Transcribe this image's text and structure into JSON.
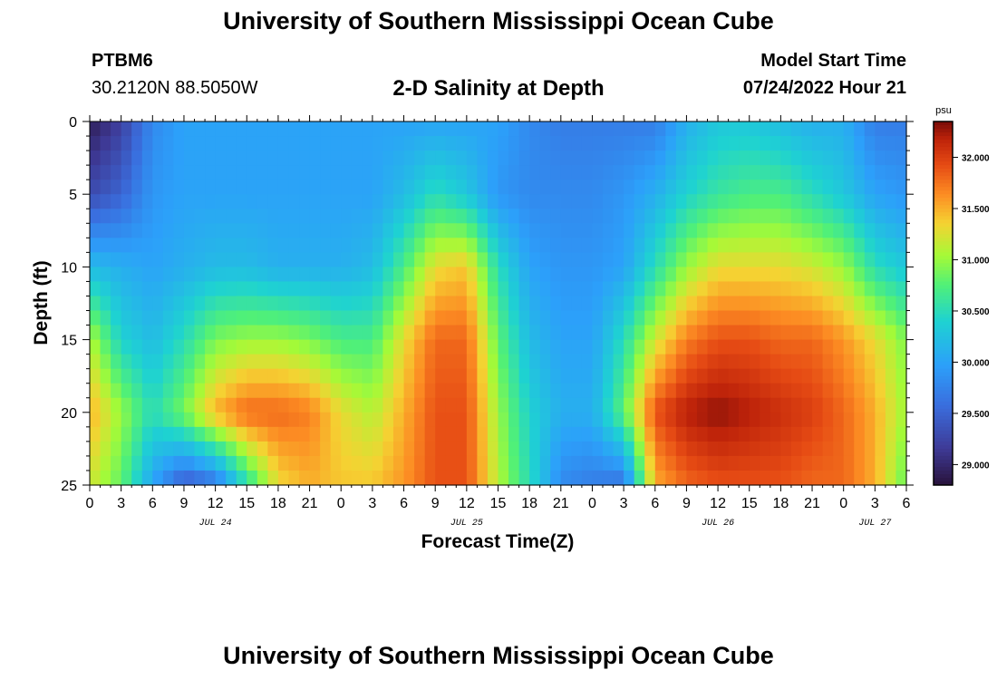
{
  "header": {
    "title": "University of Southern Mississippi Ocean Cube",
    "station_id": "PTBM6",
    "station_coords": "30.2120N  88.5050W",
    "plot_title": "2-D Salinity at Depth",
    "model_start_label": "Model Start Time",
    "model_start_value": "07/24/2022 Hour 21"
  },
  "footer": {
    "title": "University of Southern Mississippi Ocean Cube"
  },
  "chart_data": {
    "type": "heatmap",
    "title": "2-D Salinity at Depth",
    "xlabel": "Forecast Time(Z)",
    "ylabel": "Depth (ft)",
    "colorbar_unit": "psu",
    "x_range_hours": [
      0,
      78
    ],
    "x_tick_labels": [
      "0",
      "3",
      "6",
      "9",
      "12",
      "15",
      "18",
      "21",
      "0",
      "3",
      "6",
      "9",
      "12",
      "15",
      "18",
      "21",
      "0",
      "3",
      "6",
      "9",
      "12",
      "15",
      "18",
      "21",
      "0",
      "3",
      "6"
    ],
    "date_labels": [
      {
        "label": "JUL 24",
        "hour": 12
      },
      {
        "label": "JUL 25",
        "hour": 36
      },
      {
        "label": "JUL 26",
        "hour": 60
      },
      {
        "label": "JUL 27",
        "hour": 75
      }
    ],
    "y_range_ft": [
      0,
      25
    ],
    "y_ticks": [
      0,
      5,
      10,
      15,
      20,
      25
    ],
    "color_range_psu": [
      28.8,
      32.35
    ],
    "colorbar_ticks": [
      "29.000",
      "29.500",
      "30.000",
      "30.500",
      "31.000",
      "31.500",
      "32.000"
    ],
    "colorbar_tick_values": [
      29.0,
      29.5,
      30.0,
      30.5,
      31.0,
      31.5,
      32.0
    ],
    "time_hours": [
      0,
      3,
      6,
      9,
      12,
      15,
      18,
      21,
      24,
      27,
      30,
      33,
      36,
      39,
      42,
      45,
      48,
      51,
      54,
      57,
      60,
      63,
      66,
      69,
      72,
      75,
      78
    ],
    "depth_ft": [
      0,
      5,
      10,
      15,
      20,
      25
    ],
    "salinity_psu": [
      [
        28.9,
        29.2,
        29.8,
        30.0,
        30.0,
        30.0,
        30.0,
        30.0,
        30.0,
        30.0,
        30.0,
        30.0,
        30.0,
        30.0,
        29.8,
        29.7,
        29.7,
        29.7,
        29.7,
        30.1,
        30.3,
        30.3,
        30.2,
        30.1,
        30.1,
        29.7,
        29.7
      ],
      [
        29.3,
        29.5,
        29.9,
        30.0,
        30.0,
        30.0,
        30.0,
        30.0,
        30.0,
        30.0,
        30.2,
        30.5,
        30.3,
        29.9,
        29.8,
        29.8,
        29.8,
        29.9,
        30.1,
        30.4,
        30.6,
        30.7,
        30.7,
        30.5,
        30.3,
        30.0,
        29.9
      ],
      [
        30.2,
        30.1,
        30.0,
        30.1,
        30.2,
        30.2,
        30.1,
        30.1,
        30.1,
        30.2,
        30.7,
        31.3,
        31.4,
        30.5,
        30.0,
        29.9,
        29.9,
        30.0,
        30.5,
        31.0,
        31.3,
        31.3,
        31.3,
        31.2,
        31.0,
        30.5,
        30.3
      ],
      [
        31.1,
        30.4,
        30.2,
        30.5,
        30.9,
        31.0,
        31.0,
        30.9,
        30.7,
        30.7,
        31.3,
        31.8,
        31.8,
        30.8,
        30.2,
        30.0,
        30.0,
        30.5,
        31.2,
        31.7,
        31.9,
        31.9,
        31.8,
        31.8,
        31.6,
        31.3,
        30.9
      ],
      [
        31.5,
        31.0,
        30.5,
        30.9,
        31.5,
        31.8,
        31.8,
        31.7,
        31.3,
        31.1,
        31.5,
        31.9,
        31.9,
        31.0,
        30.4,
        30.1,
        30.1,
        30.8,
        31.9,
        32.2,
        32.3,
        32.2,
        32.1,
        32.0,
        31.8,
        31.5,
        31.0
      ],
      [
        31.2,
        30.8,
        30.0,
        29.4,
        29.6,
        30.5,
        31.3,
        31.5,
        31.4,
        31.4,
        31.6,
        31.9,
        31.9,
        31.1,
        30.5,
        29.8,
        29.7,
        29.6,
        31.5,
        31.8,
        31.9,
        31.9,
        31.9,
        31.8,
        31.8,
        31.5,
        30.8
      ]
    ]
  }
}
